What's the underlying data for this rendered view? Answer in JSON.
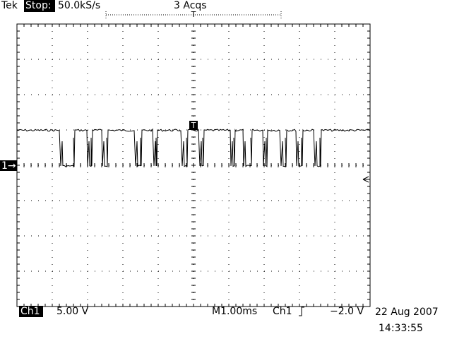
{
  "header": {
    "brand": "Tek",
    "state": "Stop:",
    "sample_rate": "50.0kS/s",
    "acquisitions": "3 Acqs",
    "trigger_marker": "T"
  },
  "channel_marker": "1→",
  "footer": {
    "channel": "Ch1",
    "volts_per_div": "5.00 V",
    "time_per_div": "M1.00ms",
    "trigger_source": "Ch1",
    "trigger_level": "−2.0 V",
    "date": "22 Aug 2007",
    "time": "14:33:55"
  }
}
